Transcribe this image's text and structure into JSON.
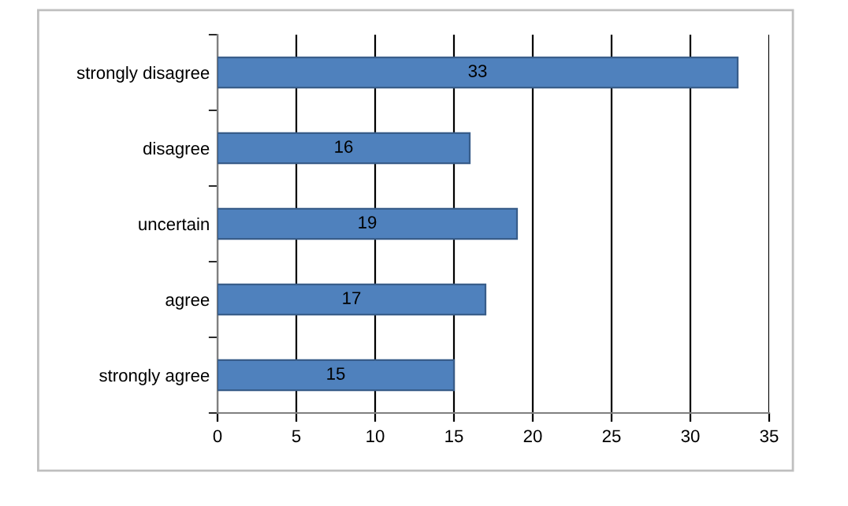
{
  "chart_data": {
    "type": "bar",
    "orientation": "horizontal",
    "categories": [
      "strongly disagree",
      "disagree",
      "uncertain",
      "agree",
      "strongly agree"
    ],
    "values": [
      33,
      16,
      19,
      17,
      15
    ],
    "color": "#4f81bd",
    "xlim": [
      0,
      35
    ],
    "xticks": [
      0,
      5,
      10,
      15,
      20,
      25,
      30,
      35
    ],
    "grid": "x",
    "data_labels": true,
    "legend": false
  }
}
